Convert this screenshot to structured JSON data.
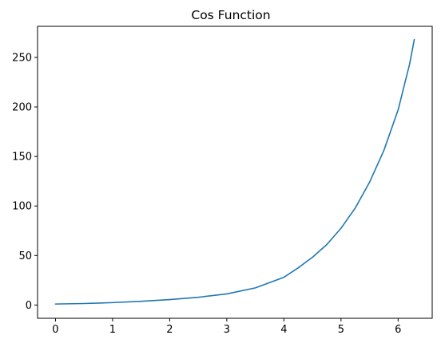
{
  "chart_data": {
    "type": "line",
    "title": "Cos Function",
    "xlabel": "",
    "ylabel": "",
    "xlim": [
      -0.314,
      6.597
    ],
    "ylim": [
      -13.4,
      281.4
    ],
    "xticks": [
      0,
      1,
      2,
      3,
      4,
      5,
      6
    ],
    "yticks": [
      0,
      50,
      100,
      150,
      200,
      250
    ],
    "grid": false,
    "legend": "none",
    "series": [
      {
        "color": "#1f77b4",
        "x": [
          0,
          0.5,
          1,
          1.5,
          2,
          2.5,
          3,
          3.5,
          4,
          4.25,
          4.5,
          4.75,
          5,
          5.25,
          5.5,
          5.75,
          6,
          6.1,
          6.2,
          6.283
        ],
        "y": [
          1.0,
          1.5,
          2.4,
          3.8,
          5.5,
          7.8,
          11.2,
          17.3,
          28.0,
          37.5,
          48.2,
          61.0,
          77.5,
          98.0,
          124.0,
          156.0,
          197.0,
          220.0,
          243.0,
          268.0
        ]
      }
    ]
  }
}
